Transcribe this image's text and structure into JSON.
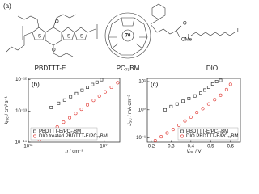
{
  "panel_a": {
    "label": "(a)",
    "molecules": [
      "PBDTTT-E",
      "PC₇₁BM",
      "DIO"
    ],
    "texts": [
      "70",
      "O",
      "OMe",
      "I",
      "I",
      "S",
      "S",
      "S",
      "O",
      "O"
    ]
  },
  "chart_data": [
    {
      "type": "scatter",
      "panel_label": "(b)",
      "x_label": {
        "symbol": "n",
        "unit": "/ cm⁻³"
      },
      "y_label": {
        "symbol": "k",
        "subscript": "rec",
        "unit": "/ cm³ s⁻¹"
      },
      "xscale": "log",
      "yscale": "log",
      "xlim": [
        1e+16,
        1.6e+17
      ],
      "ylim": [
        1e-14,
        1.1e-12
      ],
      "xticks": [
        {
          "value": 1e+16,
          "label": "10¹⁶"
        },
        {
          "value": 1e+17,
          "label": "10¹⁷"
        }
      ],
      "yticks": [
        {
          "value": 1e-12,
          "label": "10⁻¹²"
        },
        {
          "value": 1e-13,
          "label": "10⁻¹³"
        },
        {
          "value": 1e-14,
          "label": "10⁻¹⁴"
        }
      ],
      "legend": "lower left",
      "series": [
        {
          "name": "PBDTTT-E/PC₇₁BM",
          "color": "#222222",
          "marker": "square",
          "x": [
            2e+16,
            2.5e+16,
            3e+16,
            3.6e+16,
            4.3e+16,
            5.1e+16,
            6e+16,
            7e+16,
            8e+16,
            9.2e+16
          ],
          "values": [
            1.3e-13,
            1.76e-13,
            2.24e-13,
            2.86e-13,
            3.6e-13,
            4.6e-13,
            5.7e-13,
            7e-13,
            8.3e-13,
            1e-12
          ]
        },
        {
          "name": "DIO treated PBDTTT-E/PC₇₁BM",
          "color": "#e0312b",
          "marker": "circle",
          "x": [
            1.4e+16,
            1.7e+16,
            2e+16,
            2.4e+16,
            2.9e+16,
            3.5e+16,
            4.2e+16,
            5e+16,
            6e+16,
            7.2e+16,
            8.6e+16,
            1.03e+17,
            1.24e+17,
            1.5e+17
          ],
          "values": [
            1.2e-14,
            1.7e-14,
            2.3e-14,
            3.1e-14,
            4.4e-14,
            6.1e-14,
            8.4e-14,
            1.14e-13,
            1.57e-13,
            2.18e-13,
            2.99e-13,
            4.1e-13,
            5.7e-13,
            8e-13
          ]
        }
      ]
    },
    {
      "type": "scatter",
      "panel_label": "(c)",
      "x_label": {
        "symbol": "V",
        "subscript": "oc",
        "unit": "/ V"
      },
      "y_label": {
        "symbol": "J",
        "subscript": "SC",
        "unit": "/ mA cm⁻²"
      },
      "xscale": "linear",
      "yscale": "log",
      "xlim": [
        0.18,
        0.65
      ],
      "ylim": [
        0.07,
        13
      ],
      "xticks": [
        0.2,
        0.3,
        0.4,
        0.5,
        0.6
      ],
      "yticks": [
        {
          "value": 10,
          "label": "10¹"
        },
        {
          "value": 1,
          "label": "10⁰"
        },
        {
          "value": 0.1,
          "label": "10⁻¹"
        }
      ],
      "legend": "lower right",
      "series": [
        {
          "name": "PBDTTT-E/PC₇₁BM",
          "color": "#222222",
          "marker": "square",
          "x": [
            0.27,
            0.3,
            0.33,
            0.36,
            0.39,
            0.42,
            0.45,
            0.47,
            0.49,
            0.51,
            0.53,
            0.55
          ],
          "values": [
            1.0,
            1.3,
            1.6,
            2.0,
            2.5,
            3.1,
            3.9,
            5.0,
            6.3,
            8.2,
            10,
            11
          ]
        },
        {
          "name": "DIO PBDTTT-E/PC₇₁BM",
          "color": "#e0312b",
          "marker": "circle",
          "x": [
            0.22,
            0.25,
            0.28,
            0.31,
            0.34,
            0.37,
            0.4,
            0.43,
            0.46,
            0.49,
            0.52,
            0.55,
            0.58,
            0.6
          ],
          "values": [
            0.08,
            0.11,
            0.15,
            0.2,
            0.28,
            0.4,
            0.55,
            0.8,
            1.1,
            1.6,
            2.3,
            3.3,
            5.2,
            8.0
          ]
        }
      ]
    }
  ]
}
